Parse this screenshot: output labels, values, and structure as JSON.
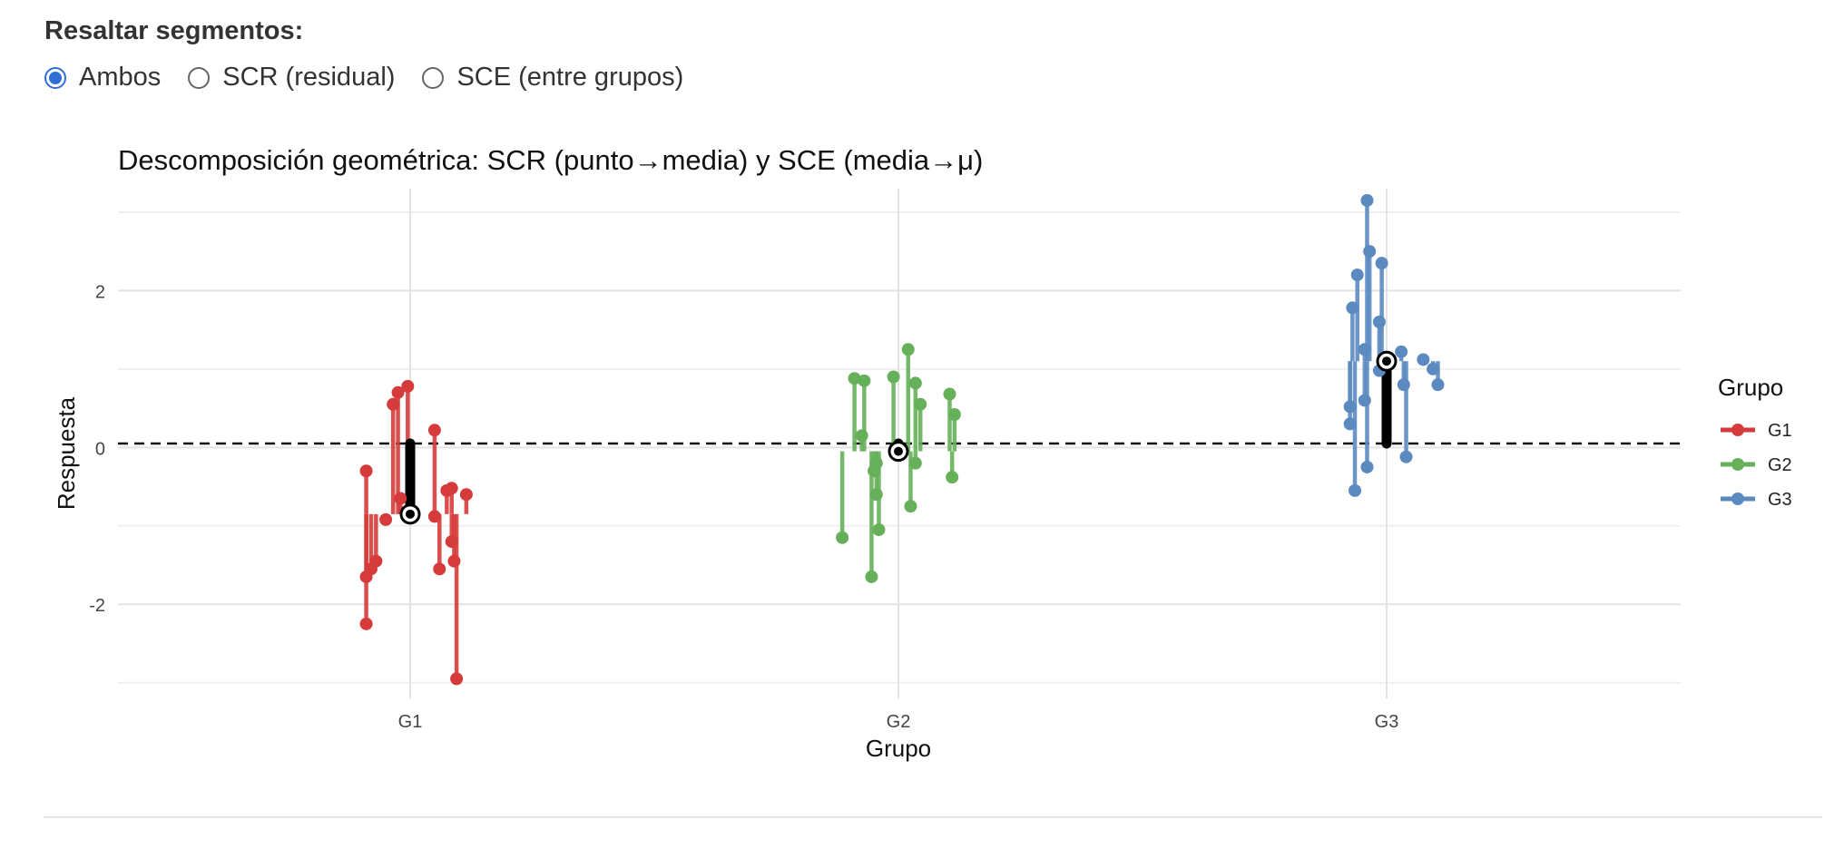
{
  "controls": {
    "title": "Resaltar segmentos:",
    "options": [
      {
        "label": "Ambos",
        "selected": true
      },
      {
        "label": "SCR (residual)",
        "selected": false
      },
      {
        "label": "SCE (entre grupos)",
        "selected": false
      }
    ],
    "accent_color": "#2f6fd6"
  },
  "chart_data": {
    "type": "scatter",
    "title": "Descomposición geométrica: SCR (punto→media) y SCE (media→μ)",
    "xlabel": "Grupo",
    "ylabel": "Respuesta",
    "categories": [
      "G1",
      "G2",
      "G3"
    ],
    "y_ticks": [
      -2,
      0,
      2
    ],
    "ylim": [
      -3.2,
      3.3
    ],
    "grid": true,
    "grand_mean": 0.05,
    "legend": {
      "title": "Grupo",
      "position": "right"
    },
    "series": [
      {
        "name": "G1",
        "color": "#d63b3b",
        "mean": -0.85,
        "points": [
          {
            "dx": -0.09,
            "y": -2.25
          },
          {
            "dx": -0.09,
            "y": -1.65
          },
          {
            "dx": -0.08,
            "y": -1.55
          },
          {
            "dx": -0.07,
            "y": -1.45
          },
          {
            "dx": -0.09,
            "y": -0.3
          },
          {
            "dx": -0.05,
            "y": -0.92
          },
          {
            "dx": -0.035,
            "y": 0.55
          },
          {
            "dx": -0.025,
            "y": 0.7
          },
          {
            "dx": -0.005,
            "y": 0.78
          },
          {
            "dx": -0.02,
            "y": -0.65
          },
          {
            "dx": 0.05,
            "y": 0.22
          },
          {
            "dx": 0.05,
            "y": -0.88
          },
          {
            "dx": 0.06,
            "y": -1.55
          },
          {
            "dx": 0.075,
            "y": -0.55
          },
          {
            "dx": 0.085,
            "y": -0.52
          },
          {
            "dx": 0.085,
            "y": -1.2
          },
          {
            "dx": 0.09,
            "y": -1.45
          },
          {
            "dx": 0.095,
            "y": -2.95
          },
          {
            "dx": 0.115,
            "y": -0.6
          }
        ]
      },
      {
        "name": "G2",
        "color": "#66b05a",
        "mean": -0.05,
        "points": [
          {
            "dx": -0.115,
            "y": -1.15
          },
          {
            "dx": -0.09,
            "y": 0.88
          },
          {
            "dx": -0.07,
            "y": 0.85
          },
          {
            "dx": -0.075,
            "y": 0.15
          },
          {
            "dx": -0.055,
            "y": -1.65
          },
          {
            "dx": -0.05,
            "y": -0.3
          },
          {
            "dx": -0.045,
            "y": -0.6
          },
          {
            "dx": -0.04,
            "y": -1.05
          },
          {
            "dx": -0.045,
            "y": -0.2
          },
          {
            "dx": -0.01,
            "y": 0.9
          },
          {
            "dx": 0.02,
            "y": 1.25
          },
          {
            "dx": 0.035,
            "y": 0.82
          },
          {
            "dx": 0.045,
            "y": 0.55
          },
          {
            "dx": 0.025,
            "y": -0.75
          },
          {
            "dx": 0.035,
            "y": -0.2
          },
          {
            "dx": 0.105,
            "y": 0.68
          },
          {
            "dx": 0.115,
            "y": 0.42
          },
          {
            "dx": 0.11,
            "y": -0.38
          }
        ]
      },
      {
        "name": "G3",
        "color": "#5b8ac0",
        "mean": 1.1,
        "points": [
          {
            "dx": -0.075,
            "y": 0.3
          },
          {
            "dx": -0.075,
            "y": 0.52
          },
          {
            "dx": -0.065,
            "y": -0.55
          },
          {
            "dx": -0.07,
            "y": 1.78
          },
          {
            "dx": -0.06,
            "y": 2.2
          },
          {
            "dx": -0.045,
            "y": 0.6
          },
          {
            "dx": -0.045,
            "y": 1.25
          },
          {
            "dx": -0.04,
            "y": 3.15
          },
          {
            "dx": -0.035,
            "y": 2.5
          },
          {
            "dx": -0.04,
            "y": -0.25
          },
          {
            "dx": -0.015,
            "y": 1.6
          },
          {
            "dx": -0.01,
            "y": 2.35
          },
          {
            "dx": -0.015,
            "y": 0.98
          },
          {
            "dx": 0.03,
            "y": 1.22
          },
          {
            "dx": 0.035,
            "y": 0.8
          },
          {
            "dx": 0.04,
            "y": -0.12
          },
          {
            "dx": 0.075,
            "y": 1.12
          },
          {
            "dx": 0.095,
            "y": 1.0
          },
          {
            "dx": 0.105,
            "y": 0.8
          }
        ]
      }
    ]
  }
}
